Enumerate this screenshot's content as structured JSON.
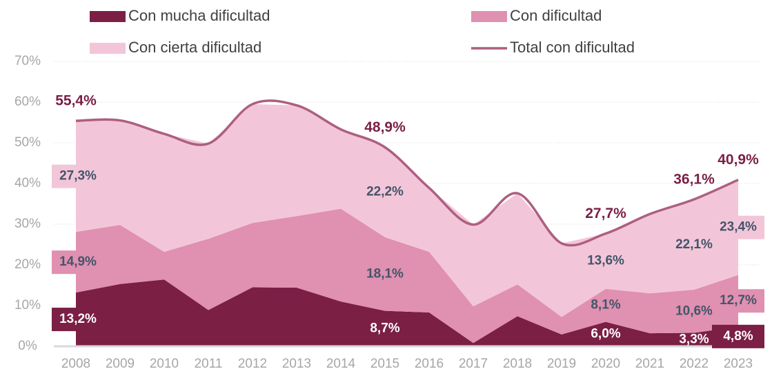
{
  "chart_data": {
    "type": "stacked-area-line",
    "categories": [
      "2008",
      "2009",
      "2010",
      "2011",
      "2012",
      "2013",
      "2014",
      "2015",
      "2016",
      "2017",
      "2018",
      "2019",
      "2020",
      "2021",
      "2022",
      "2023"
    ],
    "series": [
      {
        "name": "Con mucha dificultad",
        "color": "#7b1f45",
        "values": [
          13.2,
          15.3,
          16.4,
          8.9,
          14.5,
          14.4,
          11.0,
          8.7,
          8.3,
          0.8,
          7.4,
          2.9,
          6.0,
          3.2,
          3.3,
          4.8
        ],
        "value_labels": [
          "13,2%",
          null,
          null,
          null,
          null,
          null,
          null,
          "8,7%",
          null,
          null,
          null,
          null,
          "6,0%",
          null,
          "3,3%",
          "4,8%"
        ]
      },
      {
        "name": "Con dificultad",
        "color": "#e090b0",
        "values": [
          14.9,
          14.5,
          6.8,
          17.5,
          15.8,
          17.6,
          22.8,
          18.1,
          14.9,
          9.0,
          7.8,
          4.3,
          8.1,
          9.8,
          10.6,
          12.7
        ],
        "value_labels": [
          "14,9%",
          null,
          null,
          null,
          null,
          null,
          null,
          "18,1%",
          null,
          null,
          null,
          null,
          "8,1%",
          null,
          "10,6%",
          "12,7%"
        ]
      },
      {
        "name": "Con cierta dificultad",
        "color": "#f2c6d8",
        "values": [
          27.3,
          25.7,
          29.0,
          23.4,
          29.2,
          27.2,
          19.5,
          22.2,
          15.7,
          20.1,
          22.4,
          18.1,
          13.6,
          19.5,
          22.1,
          23.4
        ],
        "value_labels": [
          "27,3%",
          null,
          null,
          null,
          null,
          null,
          null,
          "22,2%",
          null,
          null,
          null,
          null,
          "13,6%",
          null,
          "22,1%",
          "23,4%"
        ]
      },
      {
        "name": "Total con dificultad",
        "color": "#ad5f80",
        "kind": "line",
        "values": [
          55.4,
          55.5,
          52.2,
          49.8,
          59.5,
          59.2,
          53.3,
          48.9,
          38.9,
          29.9,
          37.6,
          25.3,
          27.7,
          32.5,
          36.1,
          40.9
        ],
        "value_labels": [
          "55,4%",
          null,
          null,
          null,
          null,
          null,
          null,
          "48,9%",
          null,
          null,
          null,
          null,
          "27,7%",
          null,
          "36,1%",
          "40,9%"
        ]
      }
    ],
    "ylim": [
      0,
      70
    ],
    "yticks": [
      {
        "value": 0,
        "label": "0%"
      },
      {
        "value": 10,
        "label": "10%"
      },
      {
        "value": 20,
        "label": "20%"
      },
      {
        "value": 30,
        "label": "30%"
      },
      {
        "value": 40,
        "label": "40%"
      },
      {
        "value": 50,
        "label": "50%"
      },
      {
        "value": 60,
        "label": "60%"
      },
      {
        "value": 70,
        "label": "70%"
      }
    ],
    "grid": true,
    "legend": "top"
  }
}
